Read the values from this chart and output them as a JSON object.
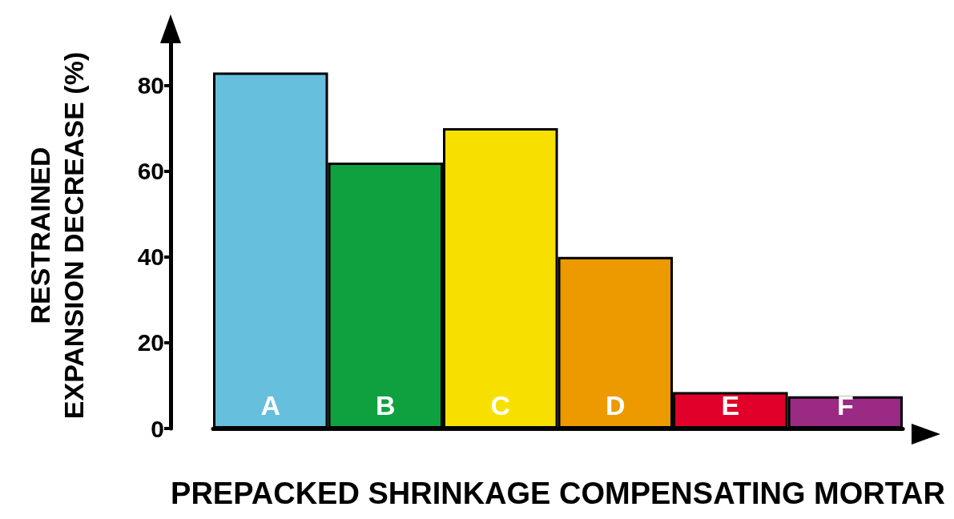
{
  "chart_data": {
    "type": "bar",
    "xlabel": "PREPACKED SHRINKAGE COMPENSATING MORTAR",
    "ylabel": "RESTRAINED\nEXPANSION DECREASE (%)",
    "categories": [
      "A",
      "B",
      "C",
      "D",
      "E",
      "F"
    ],
    "values": [
      83,
      62,
      70,
      40,
      8.5,
      7.5
    ],
    "colors": [
      "#66bfdc",
      "#0fa040",
      "#f7e000",
      "#ec9a00",
      "#e0002a",
      "#9a2a84"
    ],
    "ylim": [
      0,
      90
    ],
    "yticks": [
      0,
      20,
      40,
      60,
      80
    ],
    "grid": false
  }
}
